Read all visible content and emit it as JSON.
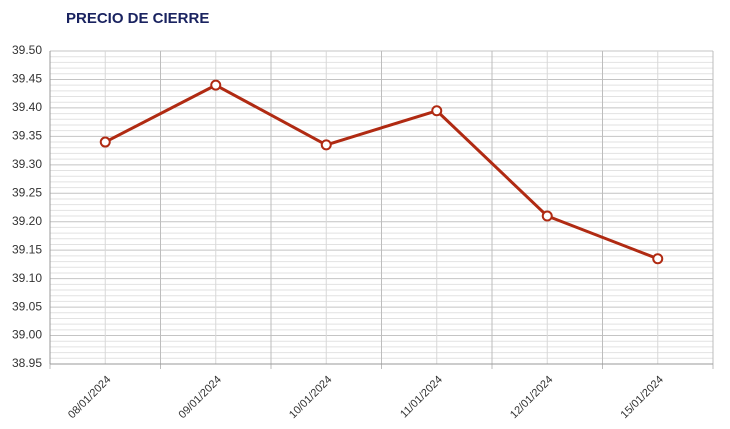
{
  "chart_data": {
    "type": "line",
    "title": "PRECIO DE CIERRE",
    "categories": [
      "08/01/2024",
      "09/01/2024",
      "10/01/2024",
      "11/01/2024",
      "12/01/2024",
      "15/01/2024"
    ],
    "values": [
      39.34,
      39.44,
      39.335,
      39.395,
      39.21,
      39.135
    ],
    "color": "#b02a12",
    "ylim": [
      38.95,
      39.5
    ],
    "yticks": [
      38.95,
      {
        "value": 39.0,
        "label": "39.00"
      },
      39.05,
      {
        "value": 39.1,
        "label": "39.10"
      },
      39.15,
      {
        "value": 39.2,
        "label": "39.20"
      },
      39.25,
      {
        "value": 39.3,
        "label": "39.30"
      },
      39.35,
      {
        "value": 39.4,
        "label": "39.40"
      },
      39.45,
      {
        "value": 39.5,
        "label": "39.50"
      }
    ],
    "grid": true
  }
}
